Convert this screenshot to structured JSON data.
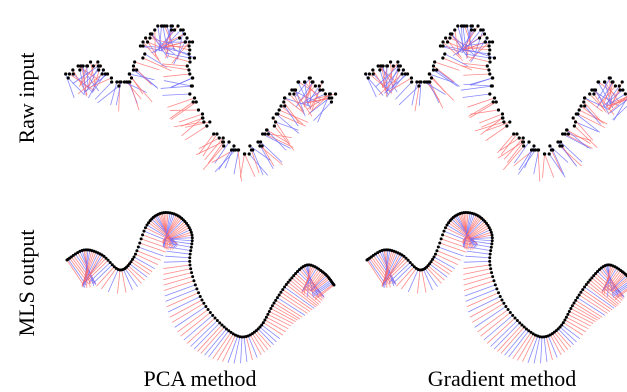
{
  "figure": {
    "row_labels": {
      "raw": "Raw input",
      "mls": "MLS output"
    },
    "column_labels": {
      "pca": "PCA method",
      "gradient": "Gradient method"
    },
    "colors": {
      "points": "#000000",
      "normal_positive": "#ff6b6b",
      "normal_negative": "#6b6bff"
    }
  }
}
